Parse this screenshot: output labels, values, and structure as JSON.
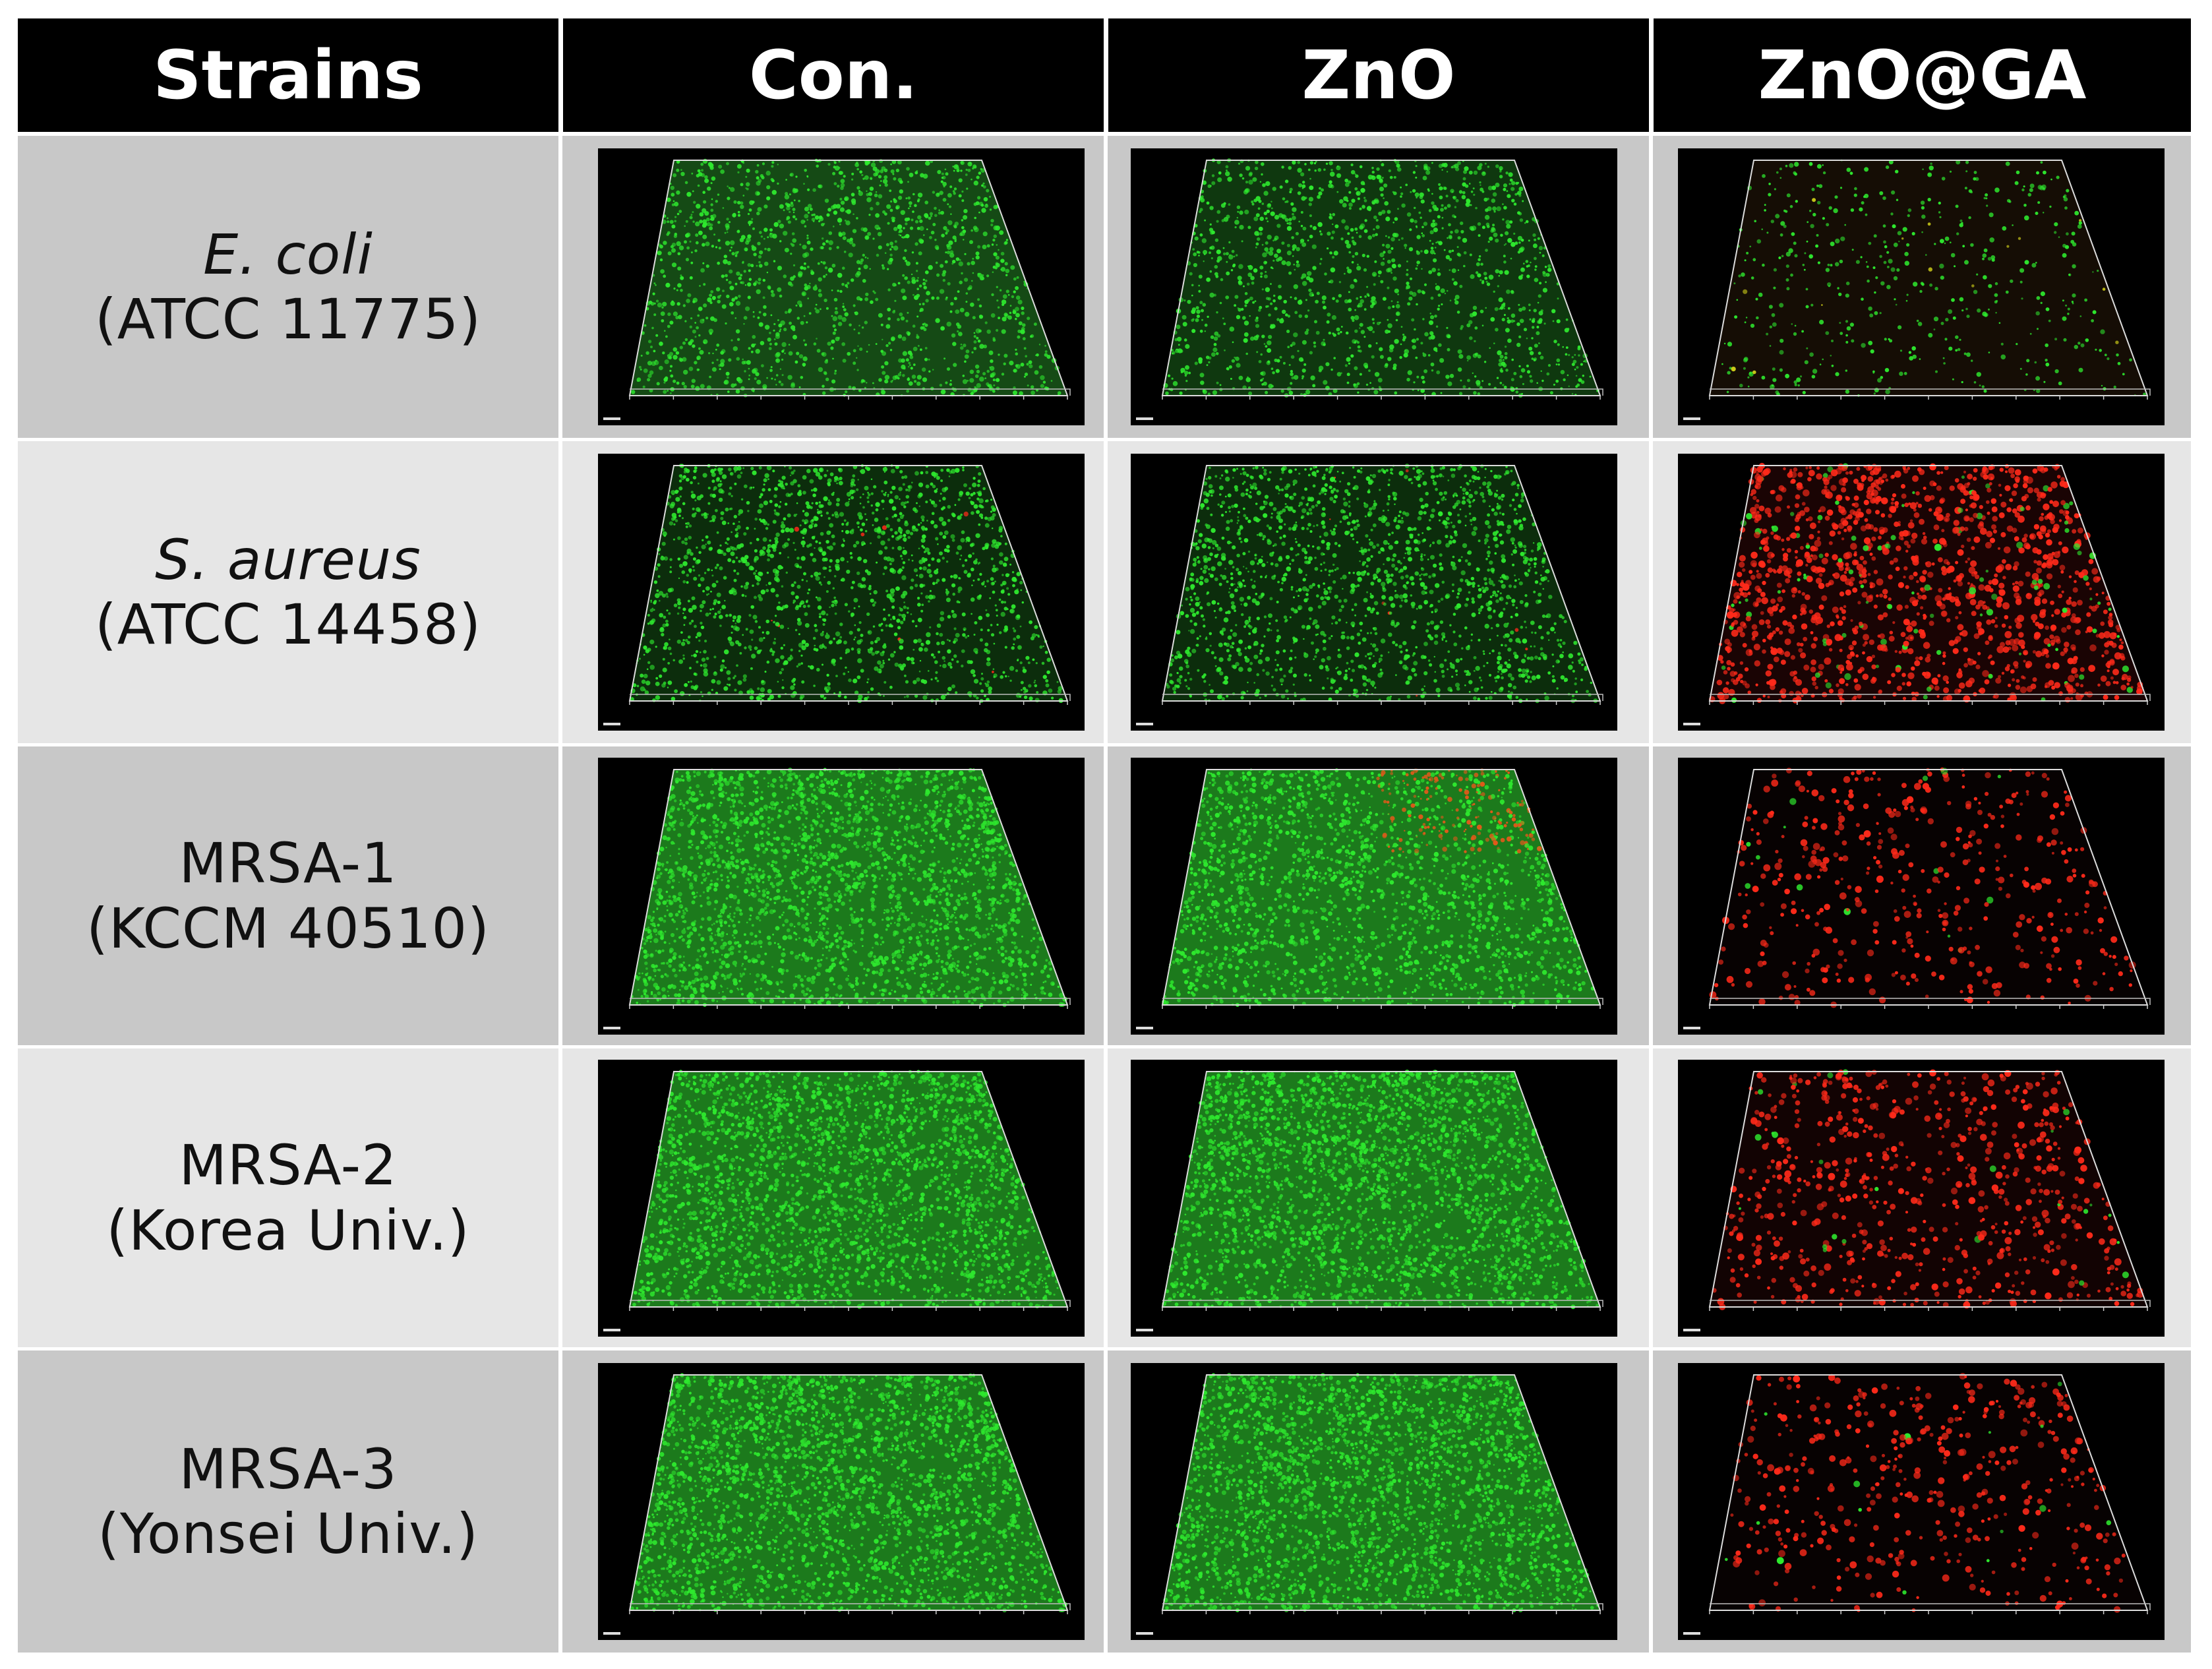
{
  "headers": [
    "Strains",
    "Con.",
    "ZnO",
    "ZnO@GA"
  ],
  "rows": [
    {
      "name": "E. coli",
      "italic": true,
      "code": "(ATCC 11775)",
      "treatments": [
        "green-dense",
        "green-cloudy",
        "green-sparse-red"
      ]
    },
    {
      "name": "S. aureus",
      "italic": true,
      "code": "(ATCC 14458)",
      "treatments": [
        "green",
        "green",
        "red"
      ]
    },
    {
      "name": "MRSA-1",
      "italic": false,
      "code": "(KCCM 40510)",
      "treatments": [
        "green-bright",
        "green-bright-red-corner",
        "red-sparse"
      ]
    },
    {
      "name": "MRSA-2",
      "italic": false,
      "code": "(Korea Univ.)",
      "treatments": [
        "green-bright",
        "green-bright",
        "red-dense"
      ]
    },
    {
      "name": "MRSA-3",
      "italic": false,
      "code": "(Yonsei Univ.)",
      "treatments": [
        "green-bright",
        "green-bright",
        "red-sparse"
      ]
    }
  ],
  "colors": {
    "live": "#2ee82e",
    "dead": "#ff2a1a",
    "header_bg": "#000000",
    "row_dark": "#c8c8c8",
    "row_light": "#e6e6e6"
  }
}
